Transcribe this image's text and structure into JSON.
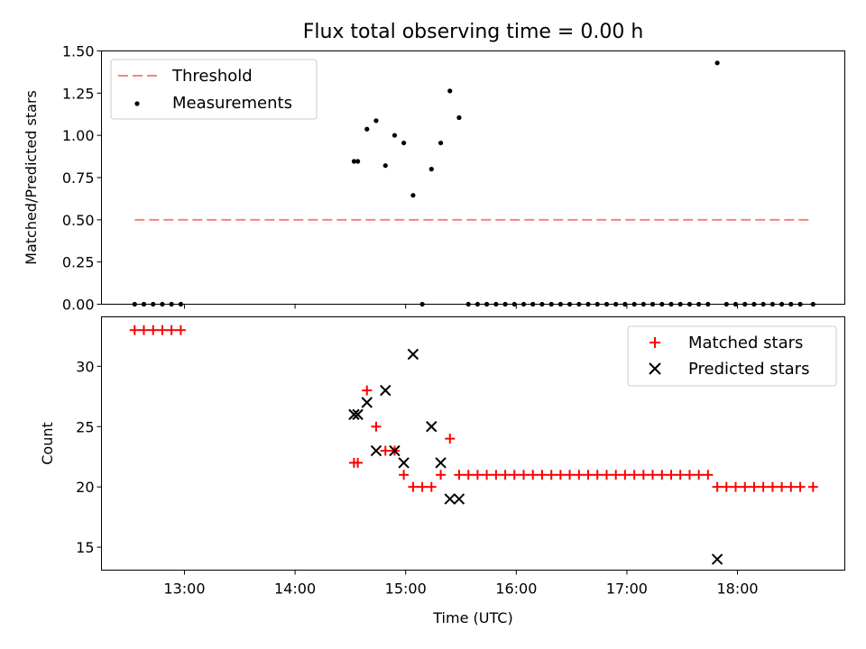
{
  "chart_data": [
    {
      "type": "scatter",
      "title": "Flux total observing time = 0.00 h",
      "xlabel": "",
      "ylabel": "Matched/Predicted stars",
      "xlim": [
        12.25,
        18.97
      ],
      "ylim": [
        0,
        1.5
      ],
      "yticks": [
        "0.00",
        "0.25",
        "0.50",
        "0.75",
        "1.00",
        "1.25",
        "1.50"
      ],
      "xticks": [
        13,
        14,
        15,
        16,
        17,
        18
      ],
      "show_xtick_labels": false,
      "grid": false,
      "legend_position": "top-left",
      "threshold": {
        "name": "Threshold",
        "style": "dashed",
        "color": "#ff7f7f",
        "x": [
          12.55,
          18.68
        ],
        "y": 0.5
      },
      "series": [
        {
          "name": "Measurements",
          "marker": "dot",
          "color": "#000000",
          "x": [
            12.55,
            12.633,
            12.717,
            12.8,
            12.883,
            12.967,
            14.533,
            14.567,
            14.65,
            14.733,
            14.817,
            14.9,
            14.983,
            15.067,
            15.15,
            15.233,
            15.317,
            15.4,
            15.483,
            15.567,
            15.65,
            15.733,
            15.817,
            15.9,
            15.983,
            16.067,
            16.15,
            16.233,
            16.317,
            16.4,
            16.483,
            16.567,
            16.65,
            16.733,
            16.817,
            16.9,
            16.983,
            17.067,
            17.15,
            17.233,
            17.317,
            17.4,
            17.483,
            17.567,
            17.65,
            17.733,
            17.817,
            17.9,
            17.983,
            18.067,
            18.15,
            18.233,
            18.317,
            18.4,
            18.483,
            18.567,
            18.683
          ],
          "y": [
            0,
            0,
            0,
            0,
            0,
            0,
            0.846,
            0.846,
            1.037,
            1.087,
            0.821,
            1.0,
            0.955,
            0.645,
            0,
            0.8,
            0.955,
            1.263,
            1.105,
            0,
            0,
            0,
            0,
            0,
            0,
            0,
            0,
            0,
            0,
            0,
            0,
            0,
            0,
            0,
            0,
            0,
            0,
            0,
            0,
            0,
            0,
            0,
            0,
            0,
            0,
            0,
            1.429,
            0,
            0,
            0,
            0,
            0,
            0,
            0,
            0,
            0,
            0
          ]
        }
      ]
    },
    {
      "type": "scatter",
      "title": "",
      "xlabel": "Time (UTC)",
      "ylabel": "Count",
      "xlim": [
        12.25,
        18.97
      ],
      "ylim": [
        13.1,
        34.1
      ],
      "yticks": [
        15,
        20,
        25,
        30
      ],
      "xticks": [
        13,
        14,
        15,
        16,
        17,
        18
      ],
      "xtick_labels": [
        "13:00",
        "14:00",
        "15:00",
        "16:00",
        "17:00",
        "18:00"
      ],
      "grid": false,
      "legend_position": "top-right",
      "series": [
        {
          "name": "Matched stars",
          "marker": "plus",
          "color": "#ff0000",
          "x": [
            12.55,
            12.633,
            12.717,
            12.8,
            12.883,
            12.967,
            14.533,
            14.567,
            14.65,
            14.733,
            14.817,
            14.9,
            14.983,
            15.067,
            15.15,
            15.233,
            15.317,
            15.4,
            15.483,
            15.567,
            15.65,
            15.733,
            15.817,
            15.9,
            15.983,
            16.067,
            16.15,
            16.233,
            16.317,
            16.4,
            16.483,
            16.567,
            16.65,
            16.733,
            16.817,
            16.9,
            16.983,
            17.067,
            17.15,
            17.233,
            17.317,
            17.4,
            17.483,
            17.567,
            17.65,
            17.733,
            17.817,
            17.9,
            17.983,
            18.067,
            18.15,
            18.233,
            18.317,
            18.4,
            18.483,
            18.567,
            18.683
          ],
          "y": [
            33,
            33,
            33,
            33,
            33,
            33,
            22,
            22,
            28,
            25,
            23,
            23,
            21,
            20,
            20,
            20,
            21,
            24,
            21,
            21,
            21,
            21,
            21,
            21,
            21,
            21,
            21,
            21,
            21,
            21,
            21,
            21,
            21,
            21,
            21,
            21,
            21,
            21,
            21,
            21,
            21,
            21,
            21,
            21,
            21,
            21,
            20,
            20,
            20,
            20,
            20,
            20,
            20,
            20,
            20,
            20,
            20
          ]
        },
        {
          "name": "Predicted stars",
          "marker": "x",
          "color": "#000000",
          "x": [
            14.533,
            14.567,
            14.65,
            14.733,
            14.817,
            14.9,
            14.983,
            15.067,
            15.233,
            15.317,
            15.4,
            15.483,
            17.817
          ],
          "y": [
            26,
            26,
            27,
            23,
            28,
            23,
            22,
            31,
            25,
            22,
            19,
            19,
            14
          ]
        }
      ]
    }
  ]
}
